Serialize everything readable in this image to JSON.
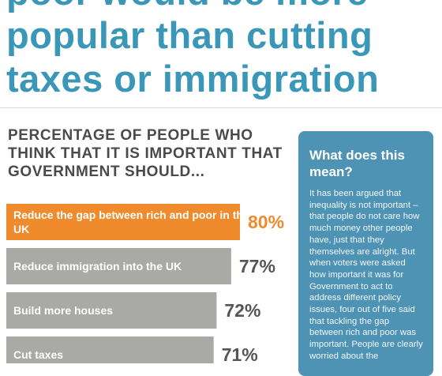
{
  "headline": {
    "line1": "poor would be more",
    "line2": "popular than cutting",
    "line3": "taxes or immigration"
  },
  "subheading": "PERCENTAGE OF PEOPLE WHO THINK THAT IT IS IMPORTANT THAT GOVERNMENT SHOULD...",
  "sidebar": {
    "title": "What does this mean?",
    "body": "It has been argued that inequality is not important – that people do not care how much money other people have, just that they themselves are alright. But when voters were asked how important it was for Government to act to address different policy issues, four out of five said that tackling the gap between rich and poor was important. People are clearly worried about the"
  },
  "colors": {
    "headline": "#3b97b8",
    "highlight_bar": "#ef8b2c",
    "other_bar": "#a9a9a6",
    "highlight_pct": "#ef8b2c",
    "other_pct": "#555555",
    "sidebar_bg": "#4f93b4"
  },
  "chart_data": {
    "type": "bar",
    "orientation": "horizontal",
    "categories": [
      "Reduce the gap between rich and poor in the UK",
      "Reduce immigration into the UK",
      "Build more houses",
      "Cut taxes"
    ],
    "values": [
      80,
      77,
      72,
      71
    ],
    "value_labels": [
      "80%",
      "77%",
      "72%",
      "71%"
    ],
    "highlight_index": 0,
    "unit": "%"
  }
}
